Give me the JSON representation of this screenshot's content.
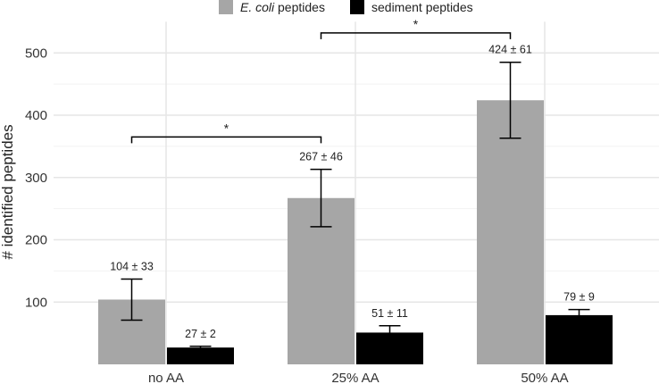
{
  "chart_data": {
    "type": "bar",
    "title": "",
    "xlabel": "",
    "ylabel": "# identified peptides",
    "categories": [
      "no AA",
      "25% AA",
      "50% AA"
    ],
    "yticks": [
      100,
      200,
      300,
      400,
      500
    ],
    "ylim": [
      0,
      550
    ],
    "grid": true,
    "legend_position": "top",
    "series": [
      {
        "name_italic": "E. coli",
        "name_rest": " peptides",
        "color": "#a6a6a6",
        "values": [
          104,
          267,
          424
        ],
        "errors": [
          33,
          46,
          61
        ],
        "labels": [
          "104 ± 33",
          "267 ± 46",
          "424 ± 61"
        ]
      },
      {
        "name_italic": "",
        "name_rest": "sediment peptides",
        "color": "#000000",
        "values": [
          27,
          51,
          79
        ],
        "errors": [
          2,
          11,
          9
        ],
        "labels": [
          "27 ± 2",
          "51 ± 11",
          "79 ± 9"
        ]
      }
    ],
    "significance": [
      {
        "from_category": 0,
        "to_category": 1,
        "series": 0,
        "level": 365,
        "label": "*"
      },
      {
        "from_category": 1,
        "to_category": 2,
        "series": 0,
        "level": 532,
        "label": "*"
      }
    ]
  }
}
